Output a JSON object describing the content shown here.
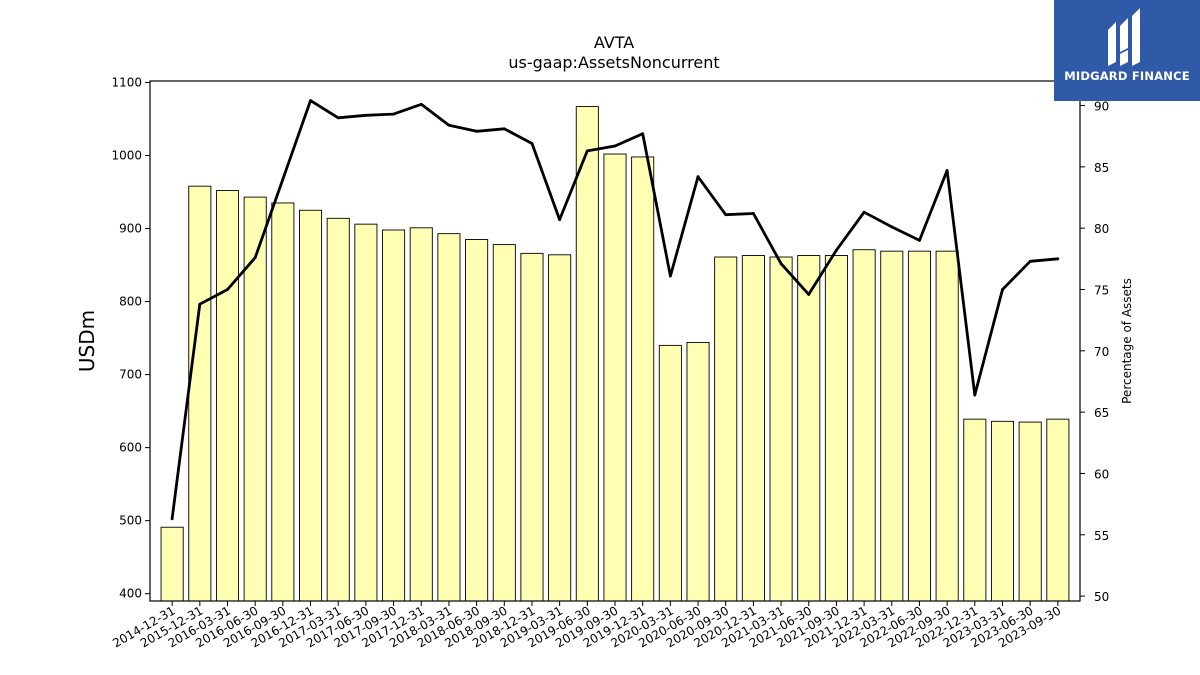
{
  "logo": {
    "text": "MIDGARD FINANCE",
    "icon": "midgard-logo-icon",
    "background": "#2f5aa8"
  },
  "chart_data": {
    "type": "bar",
    "title": "AVTA",
    "subtitle": "us-gaap:AssetsNoncurrent",
    "ylabel": "USDm",
    "y2label": "Percentage of Assets",
    "ylim": [
      390,
      1102
    ],
    "y2lim": [
      49.6,
      92.0
    ],
    "yticks": [
      400,
      500,
      600,
      700,
      800,
      900,
      1000,
      1100
    ],
    "y2ticks": [
      50,
      55,
      60,
      65,
      70,
      75,
      80,
      85,
      90
    ],
    "grid": false,
    "bar_color": "#ffffb3",
    "line_color": "#000000",
    "categories": [
      "2014-12-31",
      "2015-12-31",
      "2016-03-31",
      "2016-06-30",
      "2016-09-30",
      "2016-12-31",
      "2017-03-31",
      "2017-06-30",
      "2017-09-30",
      "2017-12-31",
      "2018-03-31",
      "2018-06-30",
      "2018-09-30",
      "2018-12-31",
      "2019-03-31",
      "2019-06-30",
      "2019-09-30",
      "2019-12-31",
      "2020-03-31",
      "2020-06-30",
      "2020-09-30",
      "2020-12-31",
      "2021-03-31",
      "2021-06-30",
      "2021-09-30",
      "2021-12-31",
      "2022-03-31",
      "2022-06-30",
      "2022-09-30",
      "2022-12-31",
      "2023-03-31",
      "2023-06-30",
      "2023-09-30"
    ],
    "series": [
      {
        "name": "us-gaap:AssetsNoncurrent",
        "type": "bar",
        "axis": "left",
        "values": [
          491,
          958,
          952,
          943,
          935,
          925,
          914,
          906,
          898,
          901,
          893,
          885,
          878,
          866,
          864,
          1067,
          1002,
          998,
          740,
          744,
          861,
          863,
          861,
          863,
          863,
          871,
          869,
          869,
          869,
          639,
          636,
          635,
          639
        ]
      },
      {
        "name": "Percentage of Assets",
        "type": "line",
        "axis": "right",
        "values": [
          56.3,
          73.8,
          75.0,
          77.6,
          84.0,
          90.4,
          89.0,
          89.2,
          89.3,
          90.1,
          88.4,
          87.9,
          88.1,
          86.9,
          80.7,
          86.3,
          86.7,
          87.7,
          76.1,
          84.2,
          81.1,
          81.2,
          77.1,
          74.6,
          78.2,
          81.3,
          80.1,
          79.0,
          84.7,
          66.4,
          75.0,
          77.3,
          77.5
        ]
      }
    ]
  }
}
